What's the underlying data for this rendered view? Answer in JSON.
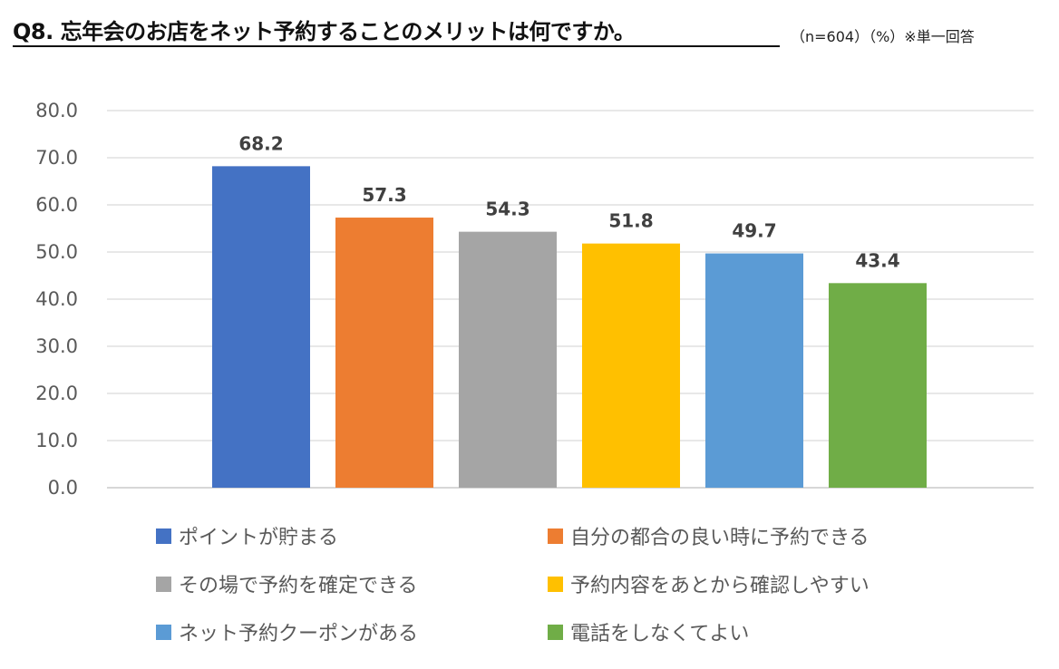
{
  "title": "Q8. 忘年会のお店をネット予約することのメリットは何ですか。",
  "note": "（n=604）（%）※単一回答",
  "chart_data": {
    "type": "bar",
    "title": "Q8. 忘年会のお店をネット予約することのメリットは何ですか。",
    "categories": [
      "ポイントが貯まる",
      "自分の都合の良い時に予約できる",
      "その場で予約を確定できる",
      "予約内容をあとから確認しやすい",
      "ネット予約クーポンがある",
      "電話をしなくてよい"
    ],
    "values": [
      68.2,
      57.3,
      54.3,
      51.8,
      49.7,
      43.4
    ],
    "data_labels": [
      "68.2",
      "57.3",
      "54.3",
      "51.8",
      "49.7",
      "43.4"
    ],
    "colors": [
      "#4472C4",
      "#ED7D31",
      "#A5A5A5",
      "#FFC000",
      "#5B9BD5",
      "#70AD47"
    ],
    "ylim": [
      0,
      80
    ],
    "yticks": [
      "0.0",
      "10.0",
      "20.0",
      "30.0",
      "40.0",
      "50.0",
      "60.0",
      "70.0",
      "80.0"
    ],
    "grid": true,
    "legend_position": "bottom",
    "xlabel": "",
    "ylabel": ""
  }
}
